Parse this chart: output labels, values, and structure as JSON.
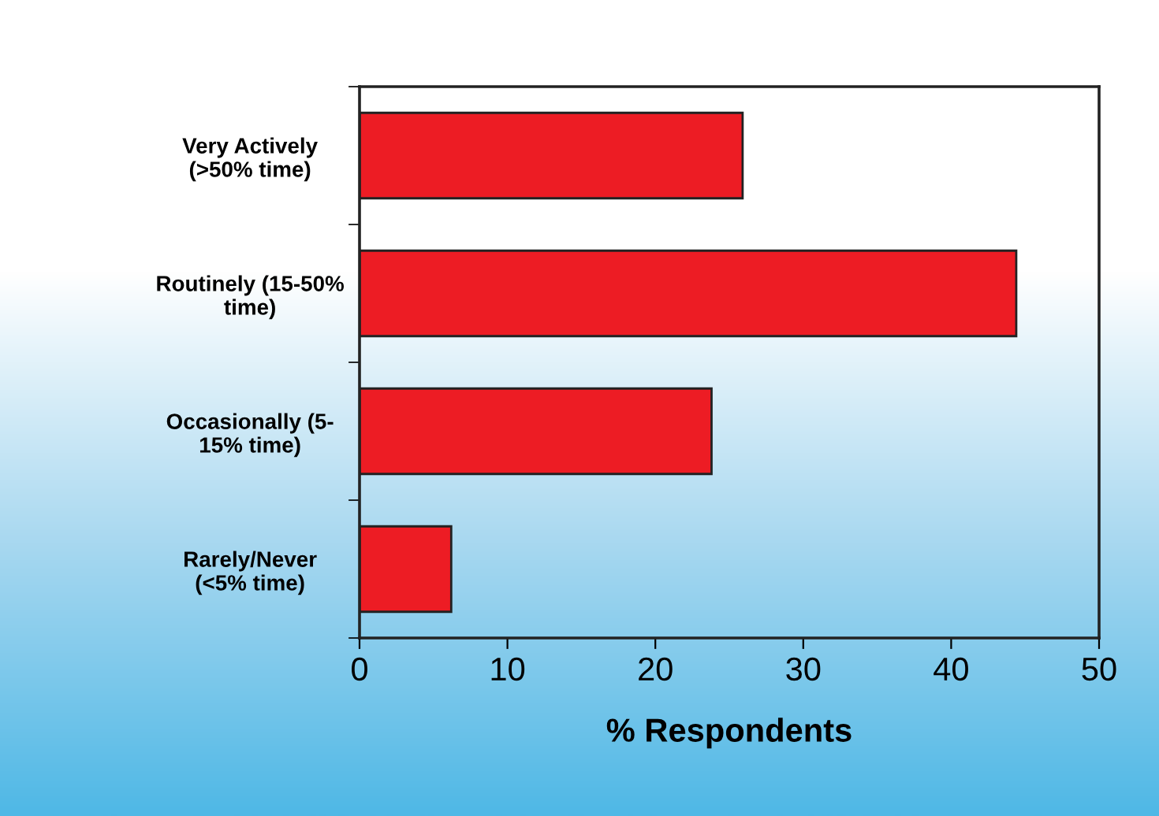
{
  "chart_data": {
    "type": "bar",
    "orientation": "horizontal",
    "xlabel": "% Respondents",
    "categories": [
      "Very Actively\n(>50% time)",
      "Routinely (15-50%\ntime)",
      "Occasionally (5-\n15% time)",
      "Rarely/Never\n(<5% time)"
    ],
    "values": [
      25.9,
      44.4,
      23.8,
      6.2
    ],
    "color": "#ed1c24",
    "xlim": [
      0,
      50
    ],
    "xticks": [
      0,
      10,
      20,
      30,
      40,
      50
    ],
    "grid": false
  }
}
